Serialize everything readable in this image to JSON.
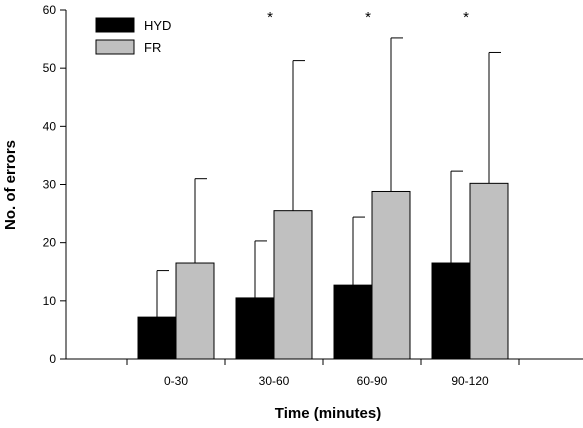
{
  "chart_data": {
    "type": "bar",
    "categories": [
      "0-30",
      "30-60",
      "60-90",
      "90-120"
    ],
    "series": [
      {
        "name": "HYD",
        "color": "#000000",
        "values": [
          7.2,
          10.5,
          12.7,
          16.5
        ],
        "error_upper": [
          15.2,
          20.3,
          24.4,
          32.3
        ]
      },
      {
        "name": "FR",
        "color": "#c0c0c0",
        "values": [
          16.5,
          25.5,
          28.8,
          30.2
        ],
        "error_upper": [
          31.0,
          51.3,
          55.2,
          52.7
        ]
      }
    ],
    "annotations": [
      {
        "category": "30-60",
        "text": "*"
      },
      {
        "category": "60-90",
        "text": "*"
      },
      {
        "category": "90-120",
        "text": "*"
      }
    ],
    "xlabel": "Time (minutes)",
    "ylabel": "No. of errors",
    "ylim": [
      0,
      60
    ],
    "yticks": [
      0,
      10,
      20,
      30,
      40,
      50,
      60
    ],
    "grid": false,
    "legend": {
      "position": "top-left"
    }
  }
}
